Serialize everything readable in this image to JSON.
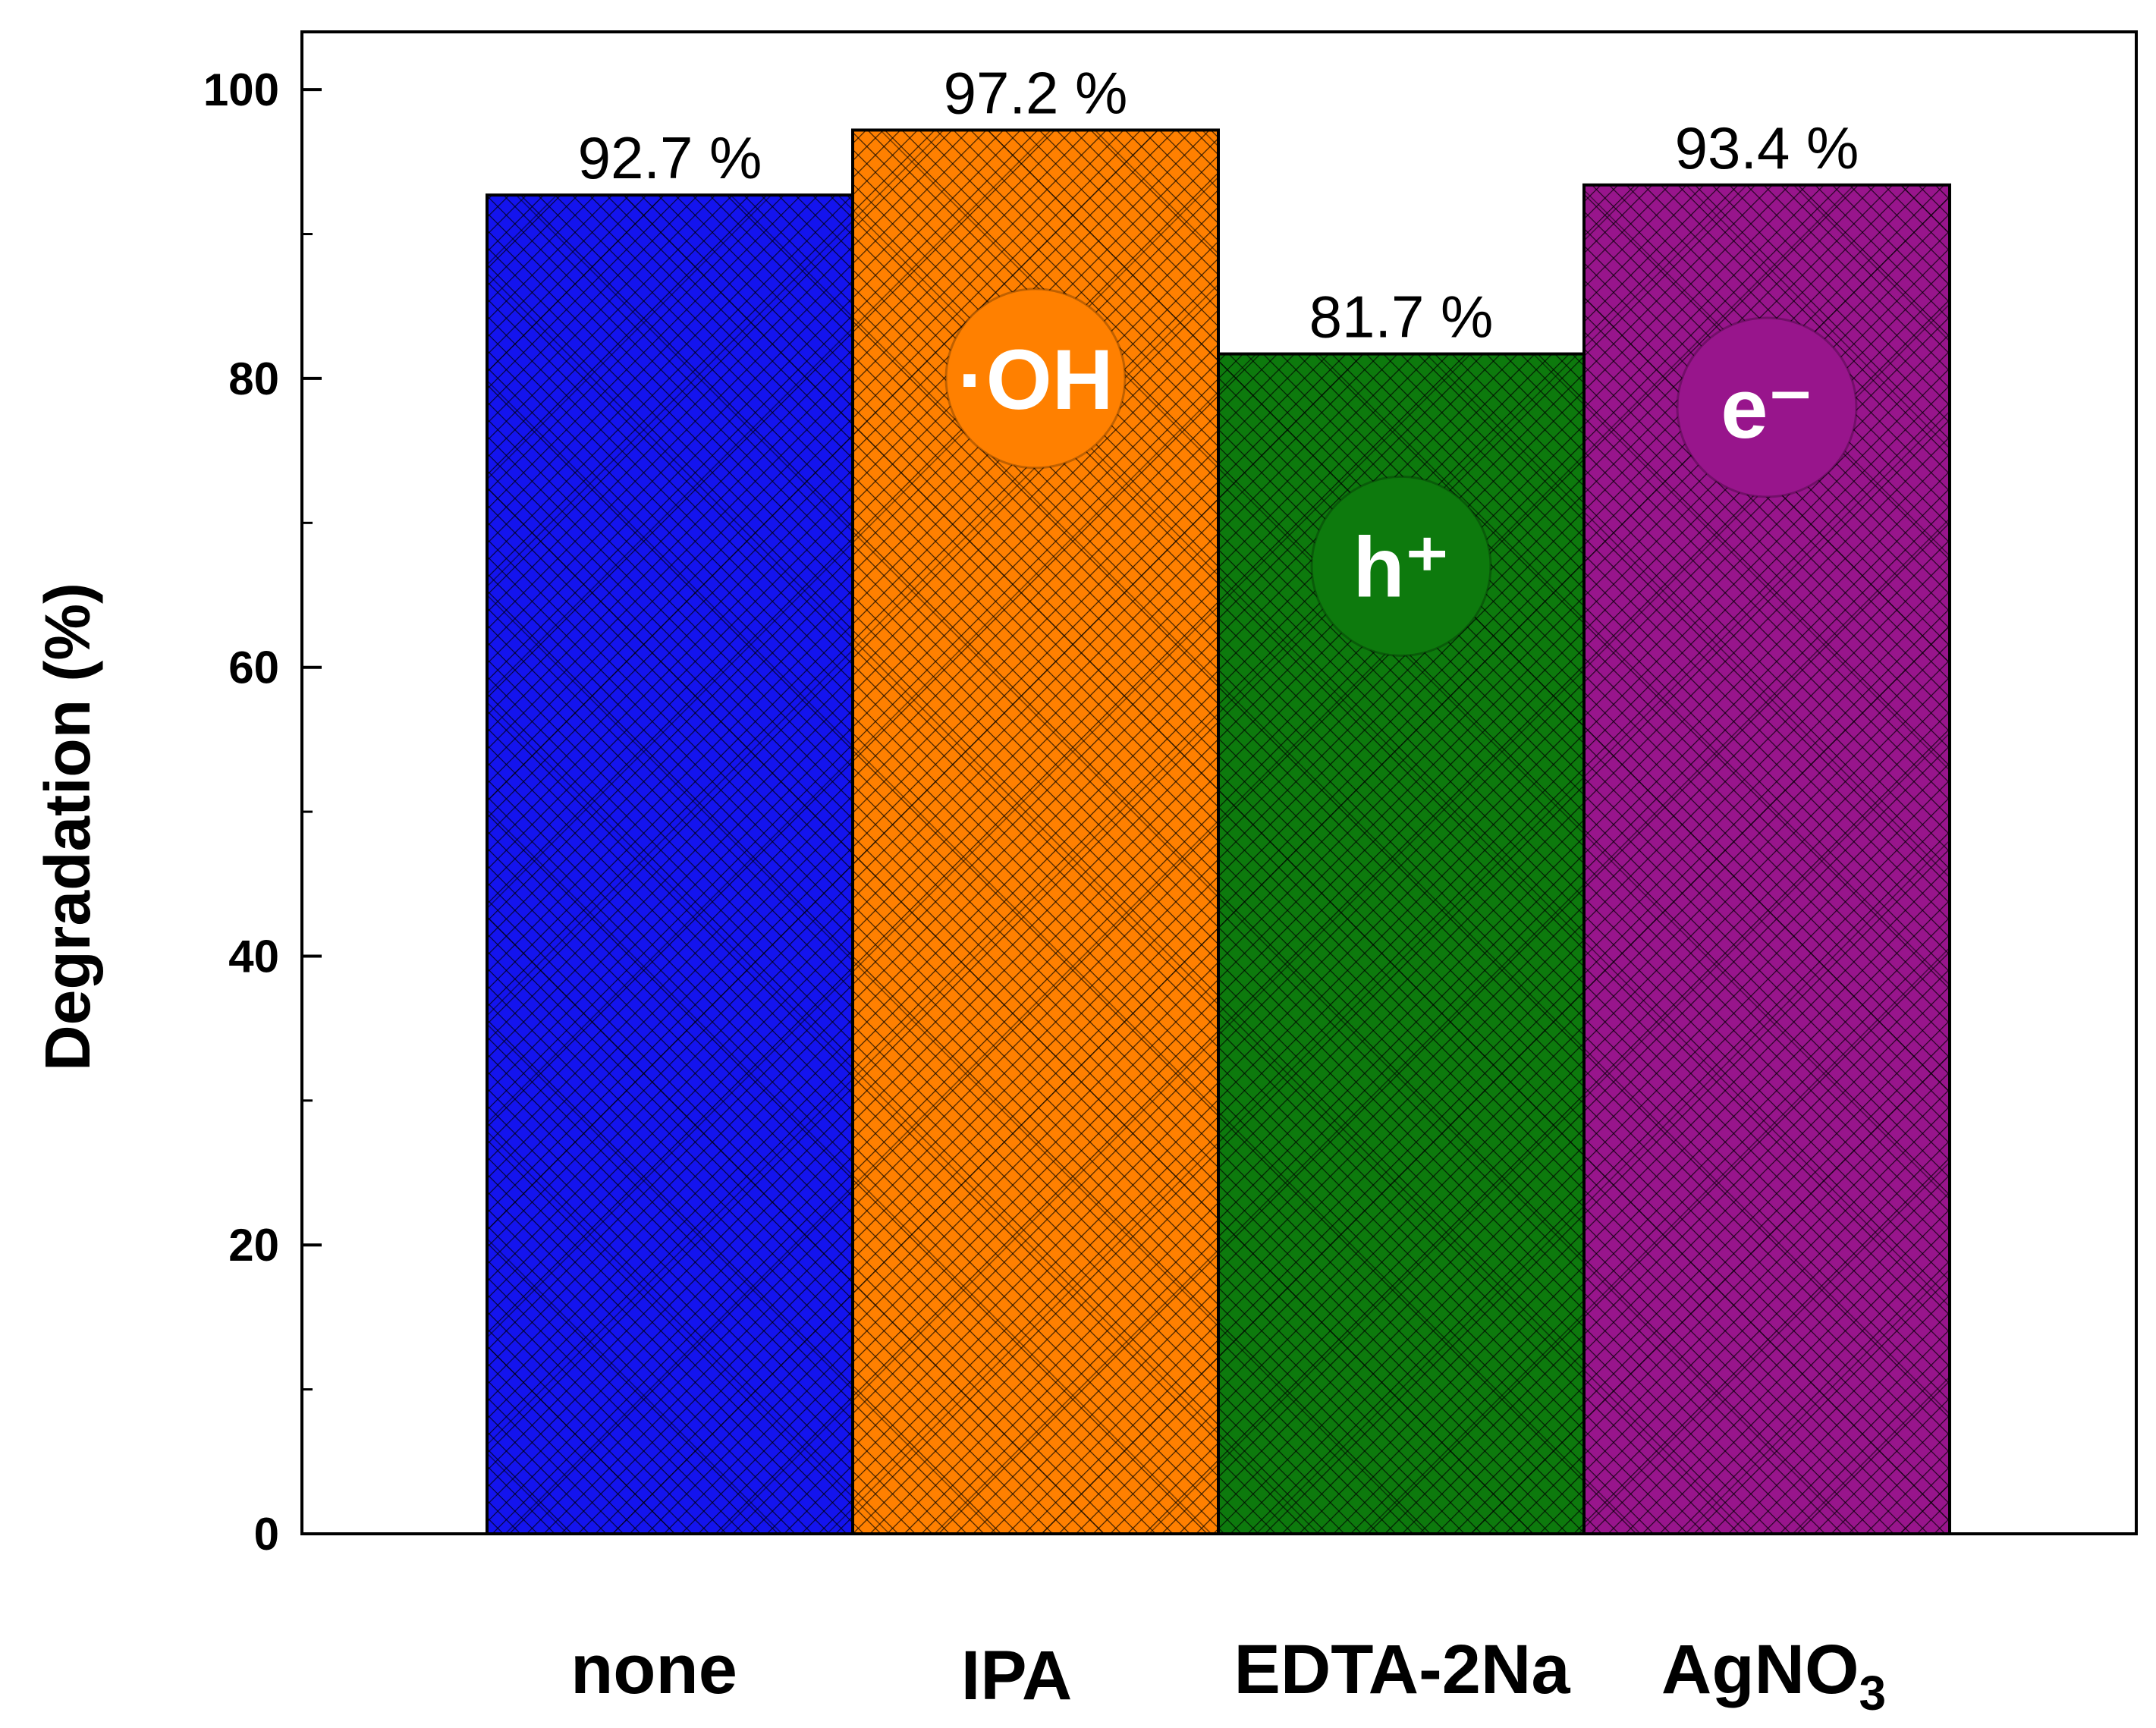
{
  "chart_data": {
    "type": "bar",
    "categories": [
      "none",
      "IPA",
      "EDTA-2Na",
      "AgNO3"
    ],
    "values": [
      92.7,
      97.2,
      81.7,
      93.4
    ],
    "data_labels": [
      "92.7 %",
      "97.2 %",
      "81.7 %",
      "93.4 %"
    ],
    "colors": [
      "#1414ee",
      "#ff8000",
      "#0d7a0d",
      "#98158c"
    ],
    "badges": [
      null,
      {
        "text": "·OH",
        "value": 80
      },
      {
        "text": "h⁺",
        "value": 67
      },
      {
        "text": "e⁻",
        "value": 78
      }
    ],
    "title": "",
    "xlabel": "",
    "ylabel": "Degradation (%)",
    "ylim": [
      0,
      104
    ],
    "yticks": [
      0,
      20,
      40,
      60,
      80,
      100
    ],
    "ytick_labels": [
      "0",
      "20",
      "40",
      "60",
      "80",
      "100"
    ],
    "minor_yticks": [
      10,
      30,
      50,
      70,
      90
    ],
    "grid": false,
    "legend": "none"
  }
}
